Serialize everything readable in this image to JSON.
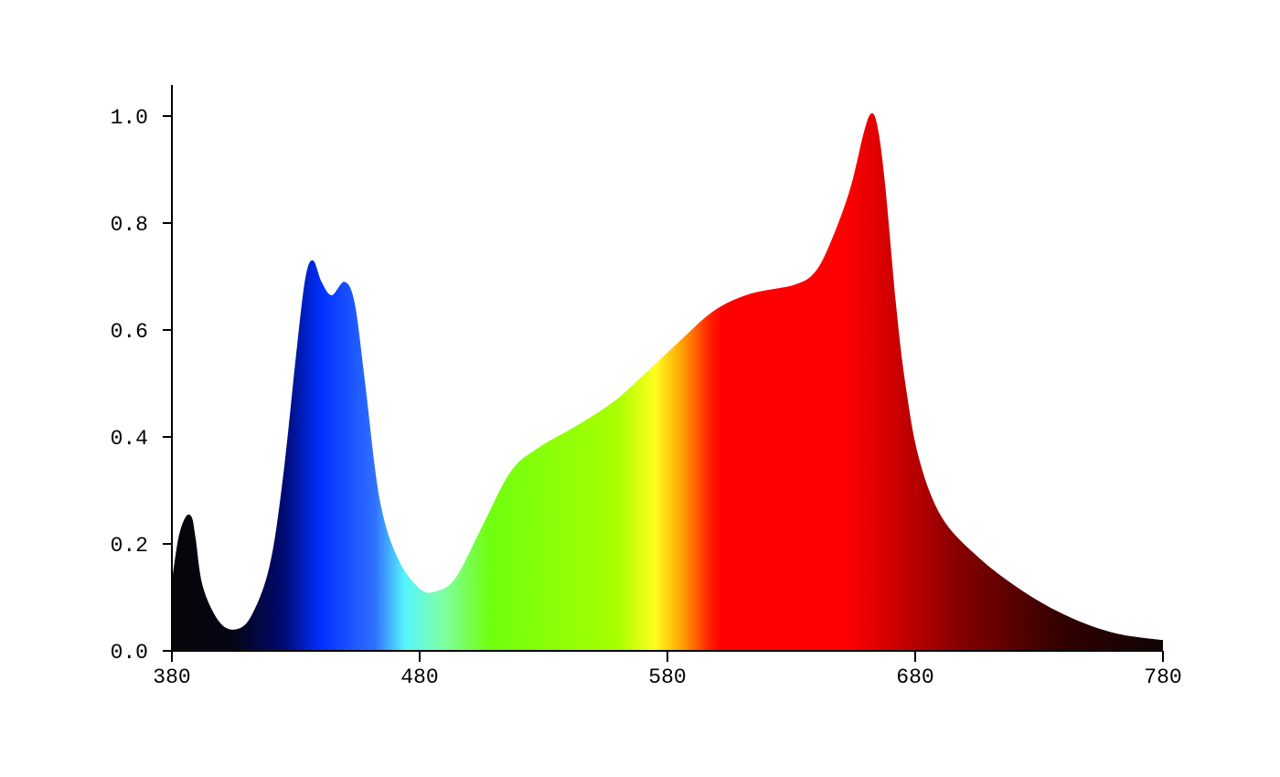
{
  "chart_data": {
    "type": "area",
    "title": "",
    "xlabel": "",
    "ylabel": "",
    "xlim": [
      380,
      780
    ],
    "ylim": [
      0,
      1.05
    ],
    "grid": false,
    "x_ticks": [
      "380",
      "480",
      "580",
      "680",
      "780"
    ],
    "y_ticks": [
      "0.0",
      "0.2",
      "0.4",
      "0.6",
      "0.8",
      "1.0"
    ],
    "fill": "visible-spectrum gradient by wavelength",
    "color_stops": [
      {
        "nm": 380,
        "color": "#05050a"
      },
      {
        "nm": 405,
        "color": "#050515"
      },
      {
        "nm": 425,
        "color": "#000a70"
      },
      {
        "nm": 440,
        "color": "#0030ff"
      },
      {
        "nm": 462,
        "color": "#3070ff"
      },
      {
        "nm": 474,
        "color": "#55f5ff"
      },
      {
        "nm": 490,
        "color": "#80ffa0"
      },
      {
        "nm": 508,
        "color": "#70ff10"
      },
      {
        "nm": 560,
        "color": "#a8ff00"
      },
      {
        "nm": 575,
        "color": "#ffff20"
      },
      {
        "nm": 586,
        "color": "#ffa000"
      },
      {
        "nm": 597,
        "color": "#ff2000"
      },
      {
        "nm": 602,
        "color": "#ff0000"
      },
      {
        "nm": 652,
        "color": "#ff0000"
      },
      {
        "nm": 672,
        "color": "#cc0000"
      },
      {
        "nm": 700,
        "color": "#800000"
      },
      {
        "nm": 740,
        "color": "#300000"
      },
      {
        "nm": 780,
        "color": "#100505"
      }
    ],
    "x": [
      380,
      382.6,
      385.5,
      388,
      389.6,
      392.5,
      399,
      405.5,
      412,
      419.5,
      425,
      430.5,
      434,
      437,
      440.4,
      444.5,
      449.7,
      453.8,
      458,
      463.8,
      471,
      480.4,
      487.7,
      495,
      506,
      517,
      528,
      543,
      558,
      569,
      584,
      598.5,
      613,
      631.6,
      639.8,
      646.4,
      653.8,
      659.3,
      662.3,
      664.8,
      667.8,
      672.2,
      676,
      681.5,
      690.7,
      705.5,
      724,
      742.4,
      760.8,
      780
    ],
    "y": [
      0.13,
      0.21,
      0.25,
      0.25,
      0.21,
      0.12,
      0.055,
      0.04,
      0.065,
      0.16,
      0.33,
      0.57,
      0.7,
      0.73,
      0.69,
      0.665,
      0.69,
      0.65,
      0.5,
      0.285,
      0.175,
      0.115,
      0.113,
      0.14,
      0.24,
      0.337,
      0.38,
      0.42,
      0.465,
      0.51,
      0.575,
      0.635,
      0.667,
      0.685,
      0.71,
      0.77,
      0.865,
      0.97,
      1.005,
      0.98,
      0.875,
      0.65,
      0.5,
      0.36,
      0.25,
      0.175,
      0.11,
      0.063,
      0.033,
      0.02
    ]
  }
}
